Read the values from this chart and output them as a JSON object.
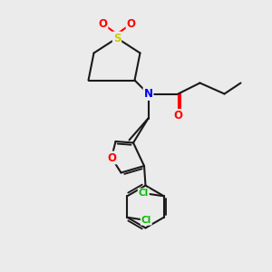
{
  "bg_color": "#ebebeb",
  "bond_color": "#1a1a1a",
  "bond_width": 1.5,
  "atom_colors": {
    "S": "#cccc00",
    "O": "#ff0000",
    "N": "#0000ee",
    "Cl": "#00bb00",
    "C": "#1a1a1a"
  },
  "fs": 8.5
}
